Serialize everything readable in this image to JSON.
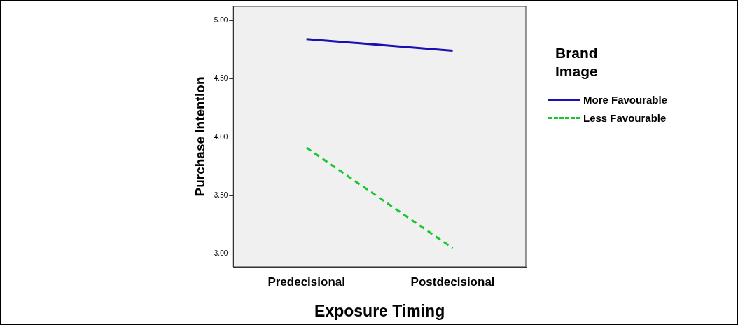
{
  "chart_data": {
    "type": "line",
    "xlabel": "Exposure Timing",
    "ylabel": "Purchase Intention",
    "legend_title": "Brand Image",
    "categories": [
      "Predecisional",
      "Postdecisional"
    ],
    "series": [
      {
        "name": "More Favourable",
        "color": "#1a0fb0",
        "values": [
          4.84,
          4.74
        ],
        "line_style": "solid"
      },
      {
        "name": "Less Favourable",
        "color": "#16c72e",
        "values": [
          3.91,
          3.05
        ],
        "line_style": "dashed"
      }
    ],
    "ylim": [
      2.89,
      5.12
    ],
    "yticks": [
      {
        "value": 3,
        "label": "3.00"
      },
      {
        "value": 3.5,
        "label": "3.50"
      },
      {
        "value": 4,
        "label": "4.00"
      },
      {
        "value": 4.5,
        "label": "4.50"
      },
      {
        "value": 5,
        "label": "5.00"
      }
    ],
    "grid": false,
    "legend": "right",
    "marker": "none"
  }
}
